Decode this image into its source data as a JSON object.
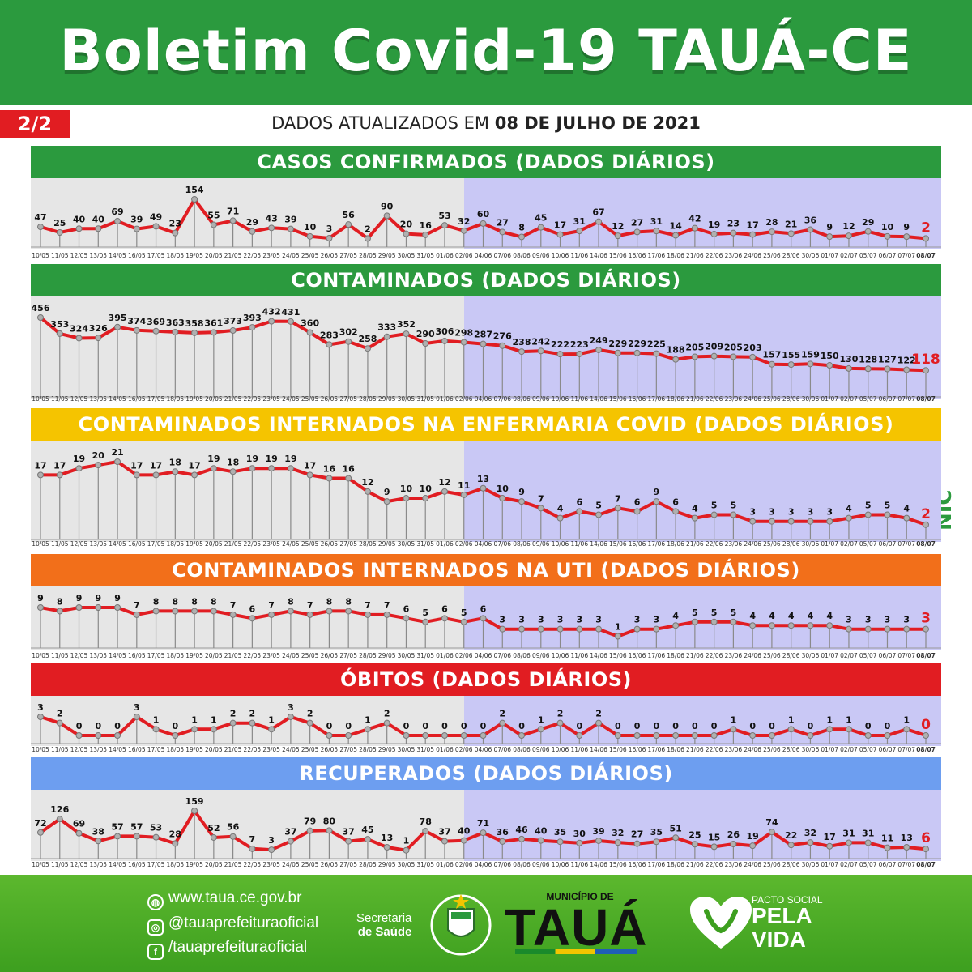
{
  "header": {
    "title": "Boletim Covid-19 TAUÁ-CE",
    "page_badge": "2/2",
    "updated_prefix": "DADOS ATUALIZADOS EM",
    "updated_date": "08 DE JULHO DE 2021"
  },
  "colors": {
    "header_green": "#2b9a3e",
    "line_red": "#e11d22",
    "past_bg": "#e6e6e6",
    "recent_bg": "#c9c8f5",
    "green_title": "#2b9a3e",
    "yellow_title": "#f5c400",
    "orange_title": "#f26f1a",
    "red_title": "#e11d22",
    "blue_title": "#6d9ef0"
  },
  "chart_data": [
    {
      "type": "line",
      "title": "CASOS CONFIRMADOS  (DADOS DIÁRIOS)",
      "title_color": "#2b9a3e",
      "categories": [
        "10/05",
        "11/05",
        "12/05",
        "13/05",
        "14/05",
        "16/05",
        "17/05",
        "18/05",
        "19/05",
        "20/05",
        "21/05",
        "22/05",
        "23/05",
        "24/05",
        "25/05",
        "26/05",
        "27/05",
        "28/05",
        "29/05",
        "30/05",
        "31/05",
        "01/06",
        "02/06",
        "04/06",
        "07/06",
        "08/06",
        "09/06",
        "10/06",
        "11/06",
        "14/06",
        "15/06",
        "16/06",
        "17/06",
        "18/06",
        "21/06",
        "22/06",
        "23/06",
        "24/06",
        "25/06",
        "28/06",
        "30/06",
        "01/07",
        "02/07",
        "05/07",
        "06/07",
        "07/07",
        "08/07"
      ],
      "values": [
        47,
        25,
        40,
        40,
        69,
        39,
        49,
        23,
        154,
        55,
        71,
        29,
        43,
        39,
        10,
        3,
        56,
        2,
        90,
        20,
        16,
        53,
        32,
        60,
        27,
        8,
        45,
        17,
        31,
        67,
        12,
        27,
        31,
        14,
        42,
        19,
        23,
        17,
        28,
        21,
        36,
        9,
        12,
        29,
        10,
        9,
        2
      ]
    },
    {
      "type": "line",
      "title": "CONTAMINADOS  (DADOS DIÁRIOS)",
      "title_color": "#2b9a3e",
      "categories": [
        "10/05",
        "11/05",
        "12/05",
        "13/05",
        "14/05",
        "16/05",
        "17/05",
        "18/05",
        "19/05",
        "20/05",
        "21/05",
        "22/05",
        "23/05",
        "24/05",
        "25/05",
        "26/05",
        "27/05",
        "28/05",
        "29/05",
        "30/05",
        "31/05",
        "01/06",
        "02/06",
        "04/06",
        "07/06",
        "08/06",
        "09/06",
        "10/06",
        "11/06",
        "14/06",
        "15/06",
        "16/06",
        "17/06",
        "18/06",
        "21/06",
        "22/06",
        "23/06",
        "24/06",
        "25/06",
        "28/06",
        "30/06",
        "01/07",
        "02/07",
        "05/07",
        "06/07",
        "07/07",
        "08/07"
      ],
      "values": [
        456,
        353,
        324,
        326,
        395,
        374,
        369,
        363,
        358,
        361,
        373,
        393,
        432,
        431,
        360,
        283,
        302,
        258,
        333,
        352,
        290,
        306,
        298,
        287,
        276,
        238,
        242,
        222,
        223,
        249,
        229,
        229,
        225,
        188,
        205,
        209,
        205,
        203,
        157,
        155,
        159,
        150,
        130,
        128,
        127,
        122,
        118
      ]
    },
    {
      "type": "line",
      "title": "CONTAMINADOS INTERNADOS NA ENFERMARIA COVID  (DADOS DIÁRIOS)",
      "title_color": "#f5c400",
      "categories": [
        "10/05",
        "11/05",
        "12/05",
        "13/05",
        "14/05",
        "16/05",
        "17/05",
        "18/05",
        "19/05",
        "20/05",
        "21/05",
        "22/05",
        "23/05",
        "24/05",
        "25/05",
        "26/05",
        "27/05",
        "28/05",
        "29/05",
        "30/05",
        "31/05",
        "01/06",
        "02/06",
        "04/06",
        "07/06",
        "08/06",
        "09/06",
        "10/06",
        "11/06",
        "14/06",
        "15/06",
        "16/06",
        "17/06",
        "18/06",
        "21/06",
        "22/06",
        "23/06",
        "24/06",
        "25/06",
        "28/06",
        "30/06",
        "01/07",
        "02/07",
        "05/07",
        "06/07",
        "07/07",
        "08/07"
      ],
      "values": [
        17,
        17,
        19,
        20,
        21,
        17,
        17,
        18,
        17,
        19,
        18,
        19,
        19,
        19,
        17,
        16,
        16,
        12,
        9,
        10,
        10,
        12,
        11,
        13,
        10,
        9,
        7,
        4,
        6,
        5,
        7,
        6,
        9,
        6,
        4,
        5,
        5,
        3,
        3,
        3,
        3,
        3,
        4,
        5,
        5,
        4,
        2
      ]
    },
    {
      "type": "line",
      "title": "CONTAMINADOS INTERNADOS NA UTI  (DADOS DIÁRIOS)",
      "title_color": "#f26f1a",
      "categories": [
        "10/05",
        "11/05",
        "12/05",
        "13/05",
        "14/05",
        "16/05",
        "17/05",
        "18/05",
        "19/05",
        "20/05",
        "21/05",
        "22/05",
        "23/05",
        "24/05",
        "25/05",
        "26/05",
        "27/05",
        "28/05",
        "29/05",
        "30/05",
        "31/05",
        "01/06",
        "02/06",
        "04/06",
        "07/06",
        "08/06",
        "09/06",
        "10/06",
        "11/06",
        "14/06",
        "15/06",
        "16/06",
        "17/06",
        "18/06",
        "21/06",
        "22/06",
        "23/06",
        "24/06",
        "25/06",
        "28/06",
        "30/06",
        "01/07",
        "02/07",
        "05/07",
        "06/07",
        "07/07",
        "08/07"
      ],
      "values": [
        9,
        8,
        9,
        9,
        9,
        7,
        8,
        8,
        8,
        8,
        7,
        6,
        7,
        8,
        7,
        8,
        8,
        7,
        7,
        6,
        5,
        6,
        5,
        6,
        3,
        3,
        3,
        3,
        3,
        3,
        1,
        3,
        3,
        4,
        5,
        5,
        5,
        4,
        4,
        4,
        4,
        4,
        3,
        3,
        3,
        3,
        3
      ]
    },
    {
      "type": "line",
      "title": "ÓBITOS  (DADOS DIÁRIOS)",
      "title_color": "#e11d22",
      "categories": [
        "10/05",
        "11/05",
        "12/05",
        "13/05",
        "14/05",
        "16/05",
        "17/05",
        "18/05",
        "19/05",
        "20/05",
        "21/05",
        "22/05",
        "23/05",
        "24/05",
        "25/05",
        "26/05",
        "27/05",
        "28/05",
        "29/05",
        "30/05",
        "31/05",
        "01/06",
        "02/06",
        "04/06",
        "07/06",
        "08/06",
        "09/06",
        "10/06",
        "11/06",
        "14/06",
        "15/06",
        "16/06",
        "17/06",
        "18/06",
        "21/06",
        "22/06",
        "23/06",
        "24/06",
        "25/06",
        "28/06",
        "30/06",
        "01/07",
        "02/07",
        "05/07",
        "06/07",
        "07/07",
        "08/07"
      ],
      "values": [
        3,
        2,
        0,
        0,
        0,
        3,
        1,
        0,
        1,
        1,
        2,
        2,
        1,
        3,
        2,
        0,
        0,
        1,
        2,
        0,
        0,
        0,
        0,
        0,
        2,
        0,
        1,
        2,
        0,
        2,
        0,
        0,
        0,
        0,
        0,
        0,
        1,
        0,
        0,
        1,
        0,
        1,
        1,
        0,
        0,
        1,
        0
      ]
    },
    {
      "type": "line",
      "title": "RECUPERADOS (DADOS DIÁRIOS)",
      "title_color": "#6d9ef0",
      "categories": [
        "10/05",
        "11/05",
        "12/05",
        "13/05",
        "14/05",
        "16/05",
        "17/05",
        "18/05",
        "19/05",
        "20/05",
        "21/05",
        "22/05",
        "23/05",
        "24/05",
        "25/05",
        "26/05",
        "27/05",
        "28/05",
        "29/05",
        "30/05",
        "31/05",
        "01/06",
        "02/06",
        "04/06",
        "07/06",
        "08/06",
        "09/06",
        "10/06",
        "11/06",
        "14/06",
        "15/06",
        "16/06",
        "17/06",
        "18/06",
        "21/06",
        "22/06",
        "23/06",
        "24/06",
        "25/06",
        "28/06",
        "30/06",
        "01/07",
        "02/07",
        "05/07",
        "06/07",
        "07/07",
        "08/07"
      ],
      "values": [
        72,
        126,
        69,
        38,
        57,
        57,
        53,
        28,
        159,
        52,
        56,
        7,
        3,
        37,
        79,
        80,
        37,
        45,
        13,
        1,
        78,
        37,
        40,
        71,
        36,
        46,
        40,
        35,
        30,
        39,
        32,
        27,
        35,
        51,
        25,
        15,
        26,
        19,
        74,
        22,
        32,
        17,
        31,
        31,
        11,
        13,
        6
      ]
    }
  ],
  "footer": {
    "website": "www.taua.ce.gov.br",
    "instagram": "@tauaprefeituraoficial",
    "facebook": "/tauaprefeituraoficial",
    "saude_line1": "Secretaria",
    "saude_line2": "de Saúde",
    "municipio": "MUNICÍPIO DE",
    "taua": "TAUÁ",
    "pacto_small": "PACTO SOCIAL",
    "pacto_line1": "PELA",
    "pacto_line2": "VIDA"
  },
  "nic_label": "NIC"
}
